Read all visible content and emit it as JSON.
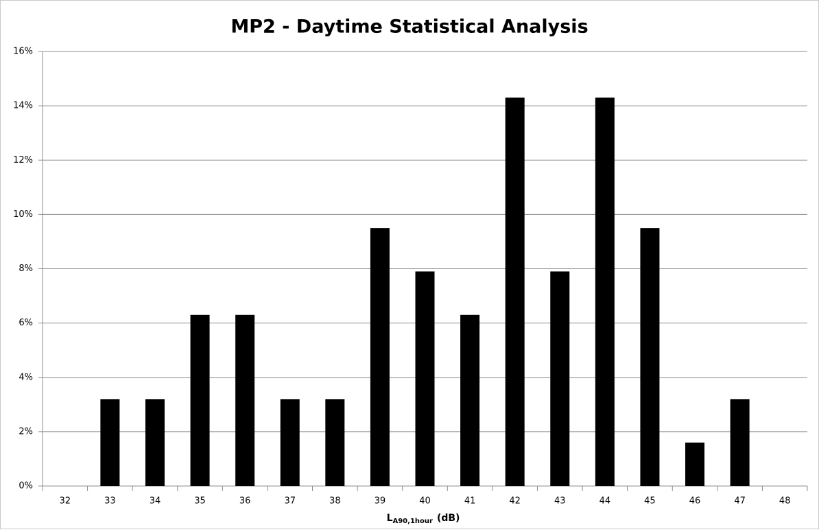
{
  "chart_data": {
    "type": "bar",
    "title": "MP2 - Daytime Statistical Analysis",
    "x_label": {
      "main": "L",
      "subscript": "A90,1hour",
      "unit": "(dB)"
    },
    "categories": [
      "32",
      "33",
      "34",
      "35",
      "36",
      "37",
      "38",
      "39",
      "40",
      "41",
      "42",
      "43",
      "44",
      "45",
      "46",
      "47",
      "48"
    ],
    "values": [
      0,
      3.2,
      3.2,
      6.3,
      6.3,
      3.2,
      3.2,
      9.5,
      7.9,
      6.3,
      14.3,
      7.9,
      14.3,
      9.5,
      1.6,
      3.2,
      0
    ],
    "color": "#000000",
    "ylim": [
      0,
      16
    ],
    "yticks": [
      {
        "value": 0,
        "label": "0%"
      },
      {
        "value": 2,
        "label": "2%"
      },
      {
        "value": 4,
        "label": "4%"
      },
      {
        "value": 6,
        "label": "6%"
      },
      {
        "value": 8,
        "label": "8%"
      },
      {
        "value": 10,
        "label": "10%"
      },
      {
        "value": 12,
        "label": "12%"
      },
      {
        "value": 14,
        "label": "14%"
      },
      {
        "value": 16,
        "label": "16%"
      }
    ],
    "grid": true
  }
}
